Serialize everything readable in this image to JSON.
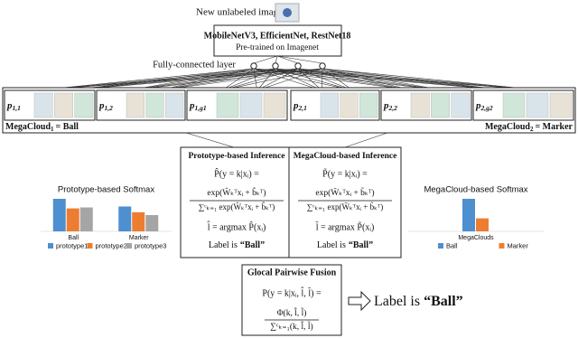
{
  "header": {
    "new_image": "New unlabeled image"
  },
  "backbone": {
    "models": "MobileNetV3, EfficientNet, RestNet18",
    "pretrained": "Pre-trained on Imagenet"
  },
  "fc_label": "Fully-connected layer",
  "prototypes": [
    {
      "symbol": "p",
      "subscript": "1,1"
    },
    {
      "symbol": "p",
      "subscript": "1,2"
    },
    {
      "symbol": "p",
      "subscript": "1,g1"
    },
    {
      "symbol": "p",
      "subscript": "2,1"
    },
    {
      "symbol": "p",
      "subscript": "2,2"
    },
    {
      "symbol": "p",
      "subscript": "2,g2"
    }
  ],
  "megaclouds": [
    {
      "name": "MegaCloud",
      "subscript": "1",
      "label": "= Ball"
    },
    {
      "name": "MegaCloud",
      "subscript": "2",
      "label": "= Marker"
    }
  ],
  "prototype_inference": {
    "title": "Prototype-based Inference",
    "lhs": "P̂(y = k|xᵢ) =",
    "numerator": "exp(Ŵₖᵀxᵢ + b̂ₖᵀ)",
    "denominator": "∑ᶜₖ₌₁ exp(Ŵₖᵀxᵢ + b̂ₖᵀ)",
    "argmax": "l̂ = argmax P̂(xᵢ)",
    "result_prefix": "Label is",
    "result_value": "“Ball”"
  },
  "megacloud_inference": {
    "title": "MegaCloud-based Inference",
    "lhs": "P̃(y = k|xᵢ) =",
    "numerator": "exp(W̃ₖᵀxᵢ + b̃ₖᵀ)",
    "denominator": "∑ᶜₖ₌₁ exp(W̃ₖᵀxᵢ + b̃ₖᵀ)",
    "argmax": "l̃ = argmax P̃(xᵢ)",
    "result_prefix": "Label is",
    "result_value": "“Ball”"
  },
  "fusion": {
    "title": "Glocal Pairwise Fusion",
    "lhs": "P(y = k|xᵢ, l̂, l̃) =",
    "numerator": "Φ(k, l̂, l̃)",
    "denominator": "∑ᶜₖ₌₁(k, l̂, l̃)"
  },
  "final": {
    "prefix": "Label is",
    "value": "“Ball”"
  },
  "chart_data": [
    {
      "type": "bar",
      "title": "Prototype-based Softmax",
      "categories": [
        "Ball",
        "Marker"
      ],
      "series": [
        {
          "name": "prototype1",
          "color": "#4e8fd0",
          "values": [
            34,
            26
          ]
        },
        {
          "name": "prototype2",
          "color": "#ed7d31",
          "values": [
            24,
            20
          ]
        },
        {
          "name": "prototype3",
          "color": "#a5a5a5",
          "values": [
            25,
            17
          ]
        }
      ]
    },
    {
      "type": "bar",
      "title": "MegaCloud-based Softmax",
      "categories": [
        "MegaClouds"
      ],
      "series": [
        {
          "name": "Ball",
          "color": "#4e8fd0",
          "values": [
            40
          ]
        },
        {
          "name": "Marker",
          "color": "#ed7d31",
          "values": [
            16
          ]
        }
      ]
    }
  ]
}
